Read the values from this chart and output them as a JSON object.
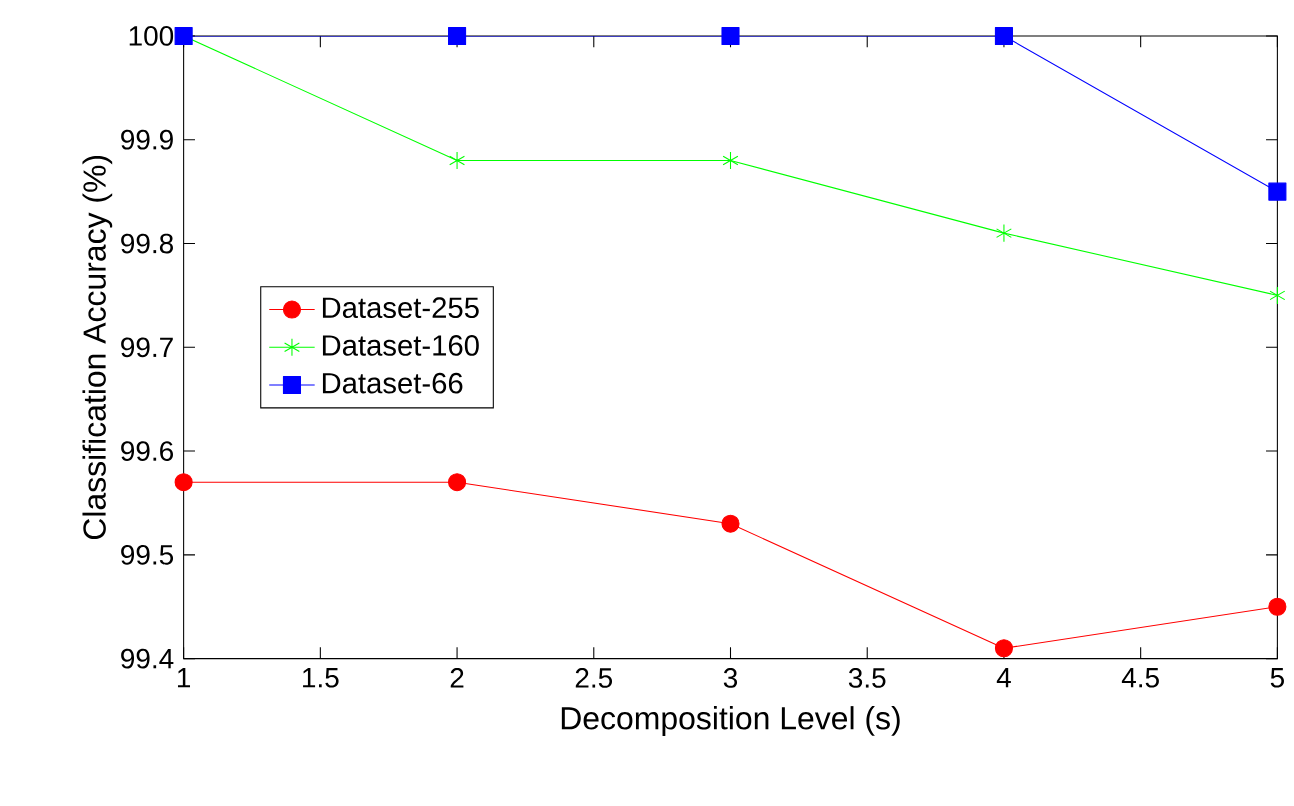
{
  "chart_data": {
    "type": "line",
    "xlabel": "Decomposition Level (s)",
    "ylabel": "Classification Accuracy (%)",
    "x": [
      1,
      2,
      3,
      4,
      5
    ],
    "series": [
      {
        "name": "Dataset-255",
        "color": "#ff0000",
        "marker": "circle",
        "values": [
          99.57,
          99.57,
          99.53,
          99.41,
          99.45
        ]
      },
      {
        "name": "Dataset-160",
        "color": "#00ff00",
        "marker": "cross",
        "values": [
          100,
          99.88,
          99.88,
          99.81,
          99.75
        ]
      },
      {
        "name": "Dataset-66",
        "color": "#0000ff",
        "marker": "square",
        "values": [
          100,
          100,
          100,
          100,
          99.85
        ]
      }
    ],
    "xlim": [
      1,
      5
    ],
    "xticks": [
      1,
      1.5,
      2,
      2.5,
      3,
      3.5,
      4,
      4.5,
      5
    ],
    "ylim": [
      99.4,
      100
    ],
    "yticks": [
      99.4,
      99.5,
      99.6,
      99.7,
      99.8,
      99.9,
      100
    ],
    "grid": false,
    "legend": "left",
    "line_style": "solid"
  }
}
